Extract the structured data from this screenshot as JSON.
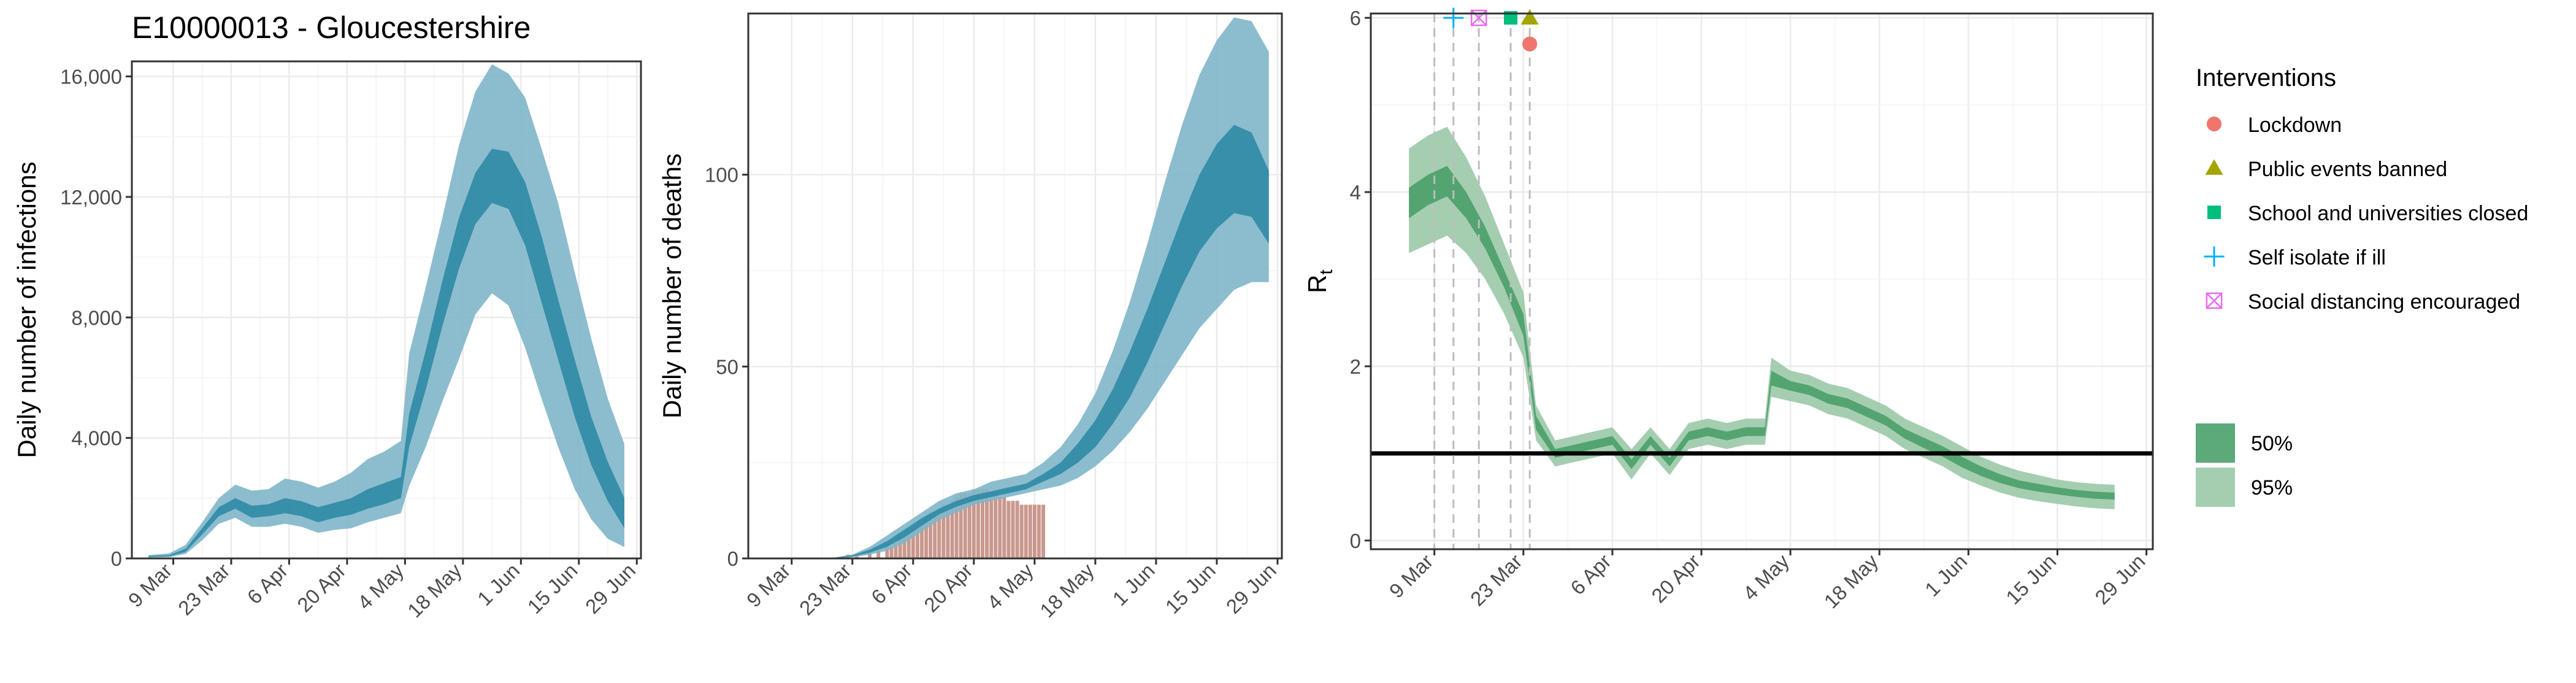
{
  "title": "E10000013 - Gloucestershire",
  "colors": {
    "infections_95": "#7fb6c9",
    "infections_50": "#2f8aa6",
    "deaths_observed": "#c0867a",
    "rt_95": "#9bc9a8",
    "rt_50": "#4aa06a",
    "reference_line": "#000000",
    "lockdown": "#f0766d",
    "public_events": "#a3a500",
    "schools": "#00bf7d",
    "self_isolate": "#00b0f6",
    "social_distancing": "#e76bf3"
  },
  "chart_data": [
    {
      "type": "area",
      "ylabel": "Daily number of infections",
      "ylim": [
        0,
        16500
      ],
      "y_ticks": [
        0,
        4000,
        8000,
        12000,
        16000
      ],
      "y_tick_labels": [
        "0",
        "4,000",
        "8,000",
        "12,000",
        "16,000"
      ],
      "x_ticks": [
        "2020-03-09",
        "2020-03-23",
        "2020-04-06",
        "2020-04-20",
        "2020-05-04",
        "2020-05-18",
        "2020-06-01",
        "2020-06-15",
        "2020-06-29"
      ],
      "x_tick_labels": [
        "9 Mar",
        "23 Mar",
        "6 Apr",
        "20 Apr",
        "4 May",
        "18 May",
        "1 Jun",
        "15 Jun",
        "29 Jun"
      ],
      "xlim": [
        "2020-02-28",
        "2020-06-30"
      ],
      "grid": true,
      "bands": {
        "x": [
          "2020-03-03",
          "2020-03-08",
          "2020-03-12",
          "2020-03-16",
          "2020-03-20",
          "2020-03-24",
          "2020-03-28",
          "2020-04-01",
          "2020-04-05",
          "2020-04-09",
          "2020-04-13",
          "2020-04-17",
          "2020-04-21",
          "2020-04-25",
          "2020-04-29",
          "2020-05-03",
          "2020-05-05",
          "2020-05-09",
          "2020-05-13",
          "2020-05-17",
          "2020-05-21",
          "2020-05-25",
          "2020-05-29",
          "2020-06-02",
          "2020-06-06",
          "2020-06-10",
          "2020-06-14",
          "2020-06-18",
          "2020-06-22",
          "2020-06-26"
        ],
        "lo95": [
          30,
          40,
          150,
          600,
          1150,
          1350,
          1050,
          1050,
          1150,
          1050,
          850,
          950,
          1000,
          1200,
          1350,
          1500,
          2400,
          3700,
          5200,
          6600,
          8100,
          8800,
          8400,
          7000,
          5300,
          3700,
          2300,
          1300,
          650,
          380
        ],
        "hi95": [
          110,
          170,
          450,
          1200,
          2000,
          2450,
          2250,
          2300,
          2650,
          2550,
          2350,
          2550,
          2850,
          3300,
          3550,
          3900,
          6800,
          9000,
          11300,
          13700,
          15500,
          16400,
          16100,
          15300,
          13600,
          11800,
          9500,
          7300,
          5300,
          3800
        ],
        "lo50": [
          50,
          70,
          220,
          800,
          1400,
          1650,
          1350,
          1400,
          1500,
          1400,
          1200,
          1350,
          1450,
          1650,
          1800,
          2000,
          3700,
          5600,
          7700,
          9600,
          11100,
          11800,
          11600,
          10400,
          8500,
          6600,
          4700,
          3100,
          1900,
          1000
        ],
        "hi50": [
          80,
          110,
          320,
          1000,
          1700,
          2000,
          1750,
          1800,
          2000,
          1900,
          1700,
          1850,
          2000,
          2300,
          2500,
          2700,
          4800,
          6900,
          9200,
          11300,
          12800,
          13600,
          13500,
          12500,
          10700,
          8600,
          6600,
          4700,
          3200,
          2000
        ]
      }
    },
    {
      "type": "area",
      "ylabel": "Daily number of deaths",
      "ylim": [
        0,
        142
      ],
      "y_ticks": [
        0,
        50,
        100
      ],
      "y_tick_labels": [
        "0",
        "50",
        "100"
      ],
      "x_ticks": [
        "2020-03-09",
        "2020-03-23",
        "2020-04-06",
        "2020-04-20",
        "2020-05-04",
        "2020-05-18",
        "2020-06-01",
        "2020-06-15",
        "2020-06-29"
      ],
      "x_tick_labels": [
        "9 Mar",
        "23 Mar",
        "6 Apr",
        "20 Apr",
        "4 May",
        "18 May",
        "1 Jun",
        "15 Jun",
        "29 Jun"
      ],
      "xlim": [
        "2020-02-28",
        "2020-06-30"
      ],
      "grid": true,
      "observed_deaths": {
        "x": [
          "2020-03-22",
          "2020-03-24",
          "2020-03-27",
          "2020-03-29",
          "2020-03-31",
          "2020-04-01",
          "2020-04-02",
          "2020-04-03",
          "2020-04-04",
          "2020-04-05",
          "2020-04-06",
          "2020-04-07",
          "2020-04-08",
          "2020-04-09",
          "2020-04-10",
          "2020-04-11",
          "2020-04-12",
          "2020-04-13",
          "2020-04-14",
          "2020-04-15",
          "2020-04-16",
          "2020-04-17",
          "2020-04-18",
          "2020-04-19",
          "2020-04-20",
          "2020-04-21",
          "2020-04-22",
          "2020-04-23",
          "2020-04-24",
          "2020-04-25",
          "2020-04-26",
          "2020-04-27",
          "2020-04-28",
          "2020-04-29",
          "2020-04-30",
          "2020-05-01",
          "2020-05-02",
          "2020-05-03",
          "2020-05-04",
          "2020-05-05",
          "2020-05-06"
        ],
        "values": [
          1,
          1,
          2,
          2,
          3,
          3,
          4,
          5,
          6,
          7,
          8,
          9,
          10,
          11,
          12,
          12,
          13,
          14,
          14,
          15,
          16,
          17,
          17,
          17,
          18,
          18,
          18,
          18,
          17,
          17,
          16,
          16,
          15,
          15,
          15,
          14,
          14,
          14,
          14,
          14,
          14
        ]
      },
      "bands": {
        "x": [
          "2020-03-19",
          "2020-03-23",
          "2020-03-27",
          "2020-03-31",
          "2020-04-04",
          "2020-04-08",
          "2020-04-12",
          "2020-04-16",
          "2020-04-20",
          "2020-04-24",
          "2020-04-28",
          "2020-05-02",
          "2020-05-06",
          "2020-05-10",
          "2020-05-14",
          "2020-05-18",
          "2020-05-22",
          "2020-05-26",
          "2020-05-30",
          "2020-06-03",
          "2020-06-07",
          "2020-06-11",
          "2020-06-15",
          "2020-06-19",
          "2020-06-23",
          "2020-06-27"
        ],
        "lo95": [
          0,
          0.3,
          1,
          2,
          4,
          7,
          10,
          12,
          14,
          15,
          16,
          17,
          18,
          19,
          21,
          24,
          28,
          33,
          39,
          46,
          53,
          60,
          65,
          70,
          72,
          72
        ],
        "hi95": [
          0.3,
          1,
          3,
          6,
          9,
          12,
          15,
          17,
          18,
          20,
          21,
          22,
          25,
          29,
          35,
          43,
          54,
          67,
          82,
          98,
          113,
          126,
          135,
          141,
          140,
          132
        ],
        "lo50": [
          0,
          0.5,
          1.5,
          3,
          5.5,
          8.5,
          11.5,
          13.5,
          15,
          16,
          17,
          18,
          20,
          22,
          25,
          29,
          35,
          42,
          51,
          61,
          71,
          80,
          86,
          90,
          89,
          82
        ],
        "hi50": [
          0.2,
          0.8,
          2.3,
          4.5,
          7.5,
          10.5,
          13,
          15,
          16.5,
          17.5,
          18.5,
          19.5,
          22,
          25,
          30,
          36,
          44,
          54,
          65,
          77,
          89,
          100,
          108,
          113,
          111,
          101
        ]
      }
    },
    {
      "type": "area",
      "ylabel": "R",
      "ylabel_subscript": "t",
      "ylim": [
        -0.1,
        6.05
      ],
      "y_ticks": [
        0,
        2,
        4,
        6
      ],
      "y_tick_labels": [
        "0",
        "2",
        "4",
        "6"
      ],
      "x_ticks": [
        "2020-03-09",
        "2020-03-23",
        "2020-04-06",
        "2020-04-20",
        "2020-05-04",
        "2020-05-18",
        "2020-06-01",
        "2020-06-15",
        "2020-06-29"
      ],
      "x_tick_labels": [
        "9 Mar",
        "23 Mar",
        "6 Apr",
        "20 Apr",
        "4 May",
        "18 May",
        "1 Jun",
        "15 Jun",
        "29 Jun"
      ],
      "xlim": [
        "2020-02-28",
        "2020-06-30"
      ],
      "grid": true,
      "reference_line": 1,
      "bands": {
        "x": [
          "2020-03-05",
          "2020-03-08",
          "2020-03-11",
          "2020-03-14",
          "2020-03-17",
          "2020-03-20",
          "2020-03-23",
          "2020-03-25",
          "2020-03-28",
          "2020-03-31",
          "2020-04-03",
          "2020-04-06",
          "2020-04-09",
          "2020-04-12",
          "2020-04-15",
          "2020-04-18",
          "2020-04-21",
          "2020-04-24",
          "2020-04-27",
          "2020-04-30",
          "2020-05-01",
          "2020-05-04",
          "2020-05-07",
          "2020-05-10",
          "2020-05-13",
          "2020-05-16",
          "2020-05-19",
          "2020-05-22",
          "2020-05-25",
          "2020-05-28",
          "2020-05-31",
          "2020-06-03",
          "2020-06-06",
          "2020-06-09",
          "2020-06-12",
          "2020-06-15",
          "2020-06-18",
          "2020-06-21",
          "2020-06-24"
        ],
        "lo95": [
          3.3,
          3.4,
          3.5,
          3.3,
          3.0,
          2.6,
          2.1,
          1.15,
          0.85,
          0.9,
          0.95,
          1.0,
          0.7,
          1.0,
          0.75,
          1.05,
          1.1,
          1.05,
          1.1,
          1.1,
          1.65,
          1.6,
          1.55,
          1.45,
          1.4,
          1.3,
          1.2,
          1.05,
          0.95,
          0.85,
          0.72,
          0.63,
          0.55,
          0.49,
          0.45,
          0.42,
          0.39,
          0.37,
          0.36
        ],
        "hi95": [
          4.5,
          4.65,
          4.75,
          4.4,
          3.95,
          3.4,
          2.85,
          1.55,
          1.15,
          1.2,
          1.25,
          1.3,
          1.05,
          1.3,
          1.05,
          1.35,
          1.4,
          1.35,
          1.4,
          1.4,
          2.1,
          1.95,
          1.9,
          1.8,
          1.75,
          1.65,
          1.55,
          1.4,
          1.3,
          1.2,
          1.08,
          0.96,
          0.87,
          0.8,
          0.75,
          0.7,
          0.67,
          0.65,
          0.64
        ],
        "lo50": [
          3.7,
          3.85,
          3.95,
          3.7,
          3.35,
          2.9,
          2.35,
          1.27,
          0.95,
          1.0,
          1.05,
          1.1,
          0.82,
          1.1,
          0.85,
          1.15,
          1.2,
          1.15,
          1.2,
          1.2,
          1.78,
          1.72,
          1.67,
          1.57,
          1.52,
          1.42,
          1.32,
          1.17,
          1.06,
          0.96,
          0.84,
          0.74,
          0.66,
          0.6,
          0.56,
          0.53,
          0.5,
          0.48,
          0.47
        ],
        "hi50": [
          4.05,
          4.2,
          4.3,
          4.0,
          3.6,
          3.1,
          2.6,
          1.43,
          1.05,
          1.1,
          1.15,
          1.2,
          0.93,
          1.2,
          0.95,
          1.25,
          1.3,
          1.25,
          1.3,
          1.3,
          1.95,
          1.83,
          1.78,
          1.68,
          1.63,
          1.53,
          1.43,
          1.28,
          1.18,
          1.08,
          0.96,
          0.85,
          0.76,
          0.69,
          0.65,
          0.61,
          0.58,
          0.56,
          0.55
        ]
      },
      "interventions": [
        {
          "name": "Self isolate if ill",
          "date": "2020-03-12",
          "shape": "plus",
          "y": 6.0
        },
        {
          "name": "Social distancing encouraged",
          "date": "2020-03-16",
          "shape": "boxcross",
          "y": 6.0
        },
        {
          "name": "School and universities closed",
          "date": "2020-03-21",
          "shape": "square",
          "y": 6.0
        },
        {
          "name": "Public events banned",
          "date": "2020-03-24",
          "shape": "triangle",
          "y": 6.0
        },
        {
          "name": "Lockdown",
          "date": "2020-03-24",
          "shape": "circle",
          "y": 5.7
        }
      ],
      "dashed_lines": [
        "2020-03-09",
        "2020-03-12",
        "2020-03-16",
        "2020-03-21",
        "2020-03-24"
      ]
    }
  ],
  "legend": {
    "title": "Interventions",
    "items": [
      {
        "label": "Lockdown",
        "shape": "circle",
        "color": "#f0766d"
      },
      {
        "label": "Public events banned",
        "shape": "triangle",
        "color": "#a3a500"
      },
      {
        "label": "School and universities closed",
        "shape": "square",
        "color": "#00bf7d"
      },
      {
        "label": "Self isolate if ill",
        "shape": "plus",
        "color": "#00b0f6"
      },
      {
        "label": "Social distancing encouraged",
        "shape": "boxcross",
        "color": "#e76bf3"
      }
    ],
    "bands": [
      {
        "label": "50%",
        "color": "#4aa06a"
      },
      {
        "label": "95%",
        "color": "#9bc9a8"
      }
    ]
  }
}
